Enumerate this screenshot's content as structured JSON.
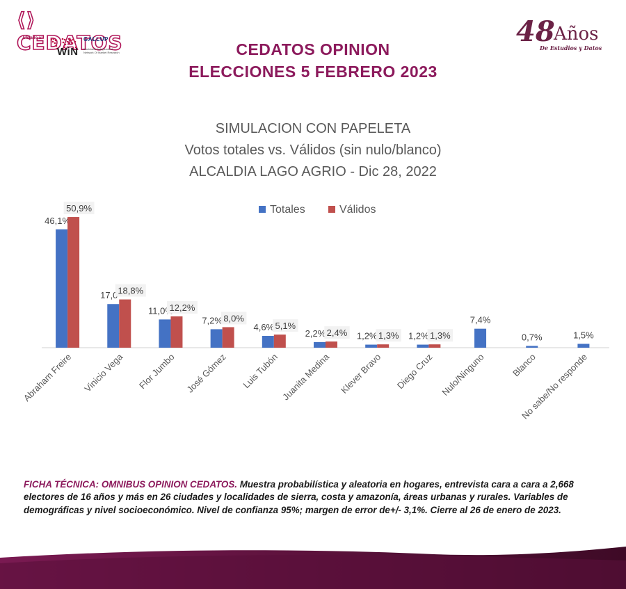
{
  "brand": {
    "logo_text": "CEDATOS",
    "afiliado": "Afiliado a:",
    "win": "WiN",
    "gallup": "GALLUP",
    "gallup_sub": "Worldwide Independent Network Of Market Research",
    "anniversary_number": "48",
    "anniversary_word": "Años",
    "anniversary_sub": "De Estudios y Datos",
    "colors": {
      "primary": "#8c1a5c",
      "dark": "#4a0f30",
      "totales": "#4472c4",
      "validos": "#c0504d"
    }
  },
  "header": {
    "line1": "CEDATOS OPINION",
    "line2": "ELECCIONES 5 FEBRERO 2023"
  },
  "chart_data": {
    "type": "bar",
    "title": "SIMULACION CON PAPELETA",
    "subtitle": "Votos totales vs. Válidos (sin nulo/blanco)",
    "subtitle2": "ALCALDIA LAGO AGRIO - Dic 28, 2022",
    "legend": {
      "placement": "top-center",
      "entries": [
        "Totales",
        "Válidos"
      ]
    },
    "categories": [
      "Abraham Freire",
      "Vinicio Vega",
      "Flor Jumbo",
      "José Gómez",
      "Luis Tubón",
      "Juanita Medina",
      "Klever Bravo",
      "Diego Cruz",
      "Nulo/Ninguno",
      "Blanco",
      "No sabe/No responde"
    ],
    "series": [
      {
        "name": "Totales",
        "color": "#4472c4",
        "values": [
          46.1,
          17.0,
          11.0,
          7.2,
          4.6,
          2.2,
          1.2,
          1.2,
          7.4,
          0.7,
          1.5
        ],
        "labels": [
          "46,1%",
          "17,0",
          "11,0%",
          "7,2%",
          "4,6%",
          "2,2%",
          "1,2%",
          "1,2%",
          "7,4%",
          "0,7%",
          "1,5%"
        ]
      },
      {
        "name": "Válidos",
        "color": "#c0504d",
        "values": [
          50.9,
          18.8,
          12.2,
          8.0,
          5.1,
          2.4,
          1.3,
          1.3,
          null,
          null,
          null
        ],
        "labels": [
          "50,9%",
          "18,8%",
          "12,2%",
          "8,0%",
          "5,1%",
          "2,4%",
          "1,3%",
          "1,3%",
          "",
          "",
          ""
        ]
      }
    ],
    "ylim": [
      0,
      52
    ],
    "grid": false
  },
  "ficha": {
    "label": "FICHA TÉCNICA:  OMNIBUS OPINION CEDATOS.",
    "text": " Muestra probabilística y aleatoria en hogares, entrevista cara a cara a 2,668 electores de 16 años y más en 26 ciudades y localidades de sierra, costa y amazonía, áreas urbanas y rurales. Variables de demográficas y nivel socioeconómico. Nivel de confianza 95%; margen de error de+/- 3,1%. Cierre al 26 de enero de 2023."
  }
}
